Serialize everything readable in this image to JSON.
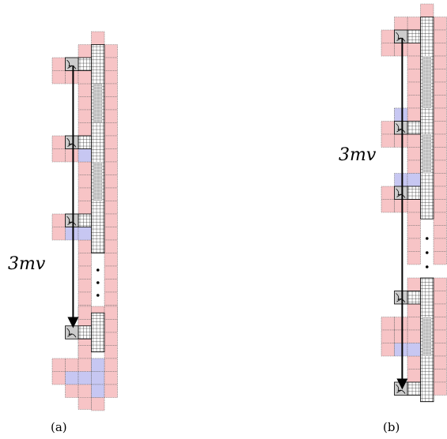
{
  "panel_a": {
    "caption": "(a)",
    "distance_label": "3mv"
  },
  "panel_b": {
    "caption": "(b)",
    "distance_label": "3mv"
  },
  "colors": {
    "cell_fill": "#f7c4c6",
    "cell_blue": "#c7c7f2",
    "cell_grid": "#ffffff",
    "cell_border": "#666666",
    "tile_fill": "#cccccc",
    "arrow": "#000000"
  }
}
